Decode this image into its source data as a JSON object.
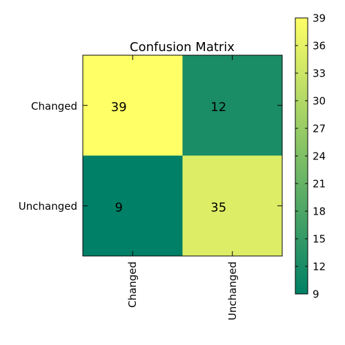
{
  "chart_data": {
    "type": "heatmap",
    "title": "Confusion Matrix",
    "rows": [
      "Changed",
      "Unchanged"
    ],
    "columns": [
      "Changed",
      "Unchanged"
    ],
    "values": [
      [
        39,
        12
      ],
      [
        9,
        35
      ]
    ],
    "colormap": "summer",
    "colorbar": {
      "min": 9,
      "max": 39,
      "ticks": [
        "9",
        "12",
        "15",
        "18",
        "21",
        "24",
        "27",
        "30",
        "33",
        "36",
        "39"
      ],
      "position": "right"
    },
    "grid": false
  }
}
